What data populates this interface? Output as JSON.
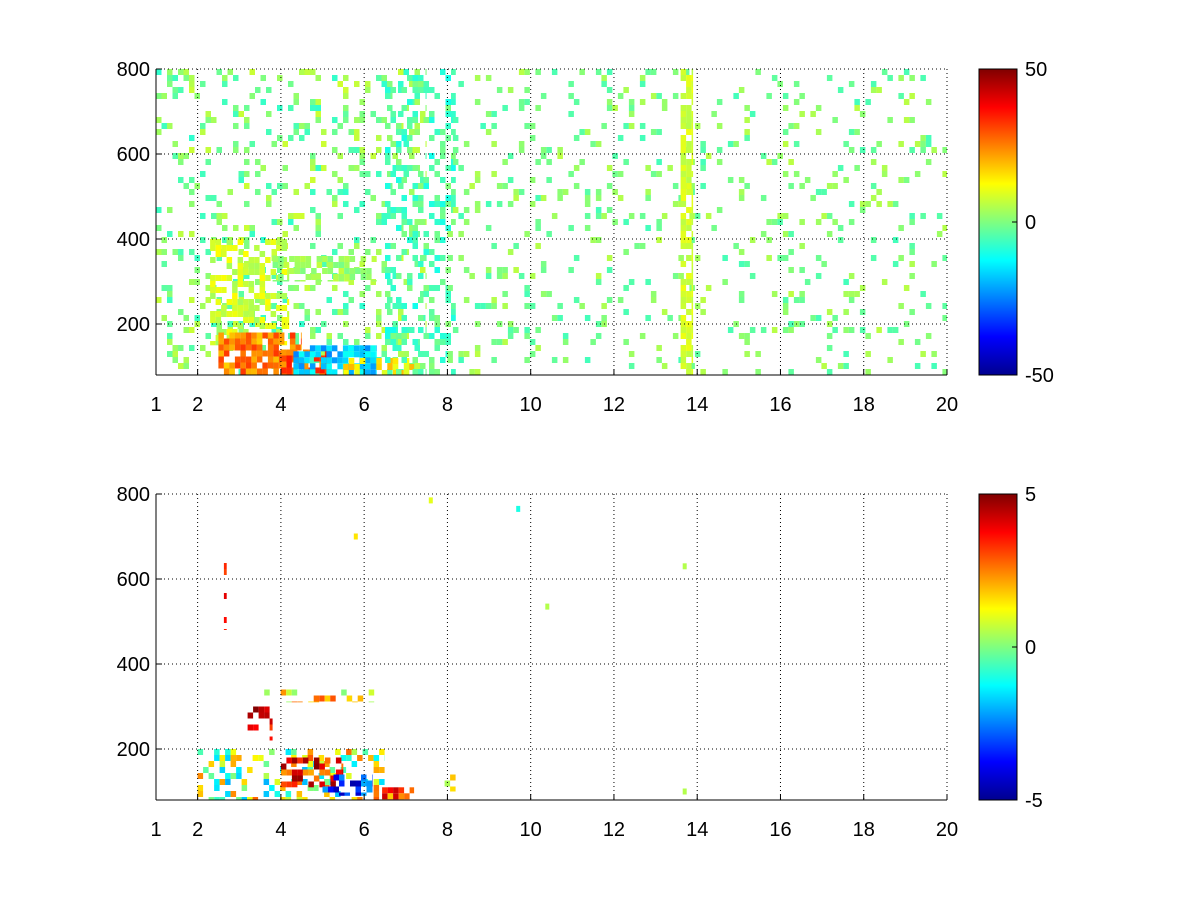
{
  "chart_data": [
    {
      "type": "heatmap",
      "title": "",
      "xlabel": "",
      "ylabel": "",
      "xlim": [
        1,
        20
      ],
      "ylim": [
        80,
        800
      ],
      "x_ticks": [
        1,
        2,
        4,
        6,
        8,
        10,
        12,
        14,
        16,
        18,
        20
      ],
      "x_tick_labels": [
        "1",
        "2",
        "4",
        "6",
        "8",
        "10",
        "12",
        "14",
        "16",
        "18",
        "20"
      ],
      "y_ticks": [
        200,
        400,
        600,
        800
      ],
      "y_tick_labels": [
        "200",
        "400",
        "600",
        "800"
      ],
      "grid": true,
      "colormap": "jet",
      "colorbar": {
        "range": [
          -50,
          50
        ],
        "ticks": [
          -50,
          0,
          50
        ],
        "tick_labels": [
          "-50",
          "0",
          "50"
        ]
      },
      "regions": [
        {
          "x": [
            1.0,
            7.5
          ],
          "y": [
            80,
            800
          ],
          "value": 0,
          "spread": 8,
          "density": 0.2
        },
        {
          "x": [
            2.3,
            4.2
          ],
          "y": [
            150,
            400
          ],
          "value": 8,
          "spread": 5,
          "density": 0.5
        },
        {
          "x": [
            3.8,
            6.3
          ],
          "y": [
            300,
            360
          ],
          "value": 3,
          "spread": 4,
          "density": 0.6
        },
        {
          "x": [
            2.5,
            4.5
          ],
          "y": [
            80,
            180
          ],
          "value": 25,
          "spread": 8,
          "density": 0.75
        },
        {
          "x": [
            4.0,
            5.2
          ],
          "y": [
            80,
            140
          ],
          "value": 30,
          "spread": 8,
          "density": 0.8
        },
        {
          "x": [
            4.3,
            6.3
          ],
          "y": [
            80,
            150
          ],
          "value": -18,
          "spread": 7,
          "density": 0.75
        },
        {
          "x": [
            5.5,
            7.2
          ],
          "y": [
            80,
            120
          ],
          "value": 15,
          "spread": 6,
          "density": 0.55
        },
        {
          "x": [
            6.5,
            8.2
          ],
          "y": [
            80,
            800
          ],
          "value": -5,
          "spread": 6,
          "density": 0.3
        },
        {
          "x": [
            8.0,
            20.0
          ],
          "y": [
            80,
            800
          ],
          "value": 0,
          "spread": 6,
          "density": 0.12
        },
        {
          "x": [
            13.6,
            13.9
          ],
          "y": [
            80,
            800
          ],
          "value": 8,
          "spread": 3,
          "density": 0.7
        }
      ]
    },
    {
      "type": "heatmap",
      "title": "",
      "xlabel": "",
      "ylabel": "",
      "xlim": [
        1,
        20
      ],
      "ylim": [
        80,
        800
      ],
      "x_ticks": [
        1,
        2,
        4,
        6,
        8,
        10,
        12,
        14,
        16,
        18,
        20
      ],
      "x_tick_labels": [
        "1",
        "2",
        "4",
        "6",
        "8",
        "10",
        "12",
        "14",
        "16",
        "18",
        "20"
      ],
      "y_ticks": [
        200,
        400,
        600,
        800
      ],
      "y_tick_labels": [
        "200",
        "400",
        "600",
        "800"
      ],
      "grid": true,
      "colormap": "jet",
      "colorbar": {
        "range": [
          -5,
          5
        ],
        "ticks": [
          -5,
          0,
          5
        ],
        "tick_labels": [
          "-5",
          "0",
          "5"
        ]
      },
      "regions": [
        {
          "x": [
            2.0,
            6.5
          ],
          "y": [
            80,
            200
          ],
          "value": 0.5,
          "spread": 2.5,
          "density": 0.35
        },
        {
          "x": [
            4.0,
            5.5
          ],
          "y": [
            110,
            180
          ],
          "value": 3.5,
          "spread": 1.5,
          "density": 0.55
        },
        {
          "x": [
            5.0,
            6.2
          ],
          "y": [
            90,
            140
          ],
          "value": -3.5,
          "spread": 1.5,
          "density": 0.5
        },
        {
          "x": [
            6.3,
            7.2
          ],
          "y": [
            80,
            110
          ],
          "value": 3.0,
          "spread": 1.5,
          "density": 0.4
        },
        {
          "x": [
            3.6,
            6.3
          ],
          "y": [
            310,
            340
          ],
          "value": 1.5,
          "spread": 1.5,
          "density": 0.35
        },
        {
          "x": [
            3.2,
            3.8
          ],
          "y": [
            220,
            300
          ],
          "value": 4.0,
          "spread": 1.0,
          "density": 0.3
        },
        {
          "x": [
            2.5,
            2.7
          ],
          "y": [
            480,
            680
          ],
          "value": 4.0,
          "spread": 1.0,
          "density": 0.25
        },
        {
          "x": [
            7.8,
            8.3
          ],
          "y": [
            100,
            140
          ],
          "value": 1.0,
          "spread": 1.0,
          "density": 0.3
        }
      ],
      "points": [
        {
          "x": 7.6,
          "y": 785,
          "value": 1.0
        },
        {
          "x": 9.7,
          "y": 765,
          "value": -1.0
        },
        {
          "x": 13.7,
          "y": 630,
          "value": 0.5
        },
        {
          "x": 13.7,
          "y": 100,
          "value": 0.5
        },
        {
          "x": 10.4,
          "y": 535,
          "value": 0.5
        },
        {
          "x": 5.8,
          "y": 700,
          "value": 1.5
        }
      ]
    }
  ]
}
